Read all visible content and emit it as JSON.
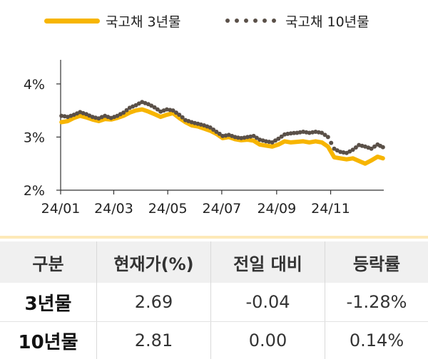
{
  "legend": {
    "series1": {
      "label": "국고채 3년물"
    },
    "series2": {
      "label": "국고채 10년물"
    }
  },
  "colors": {
    "series1": "#f7b500",
    "series2": "#5a5048",
    "axis": "#333333",
    "header_bg": "#f0f0f0"
  },
  "chart_data": {
    "type": "line",
    "x_ticks": [
      "24/01",
      "24/03",
      "24/05",
      "24/07",
      "24/09",
      "24/11"
    ],
    "y_ticks": [
      "2%",
      "3%",
      "4%"
    ],
    "ylim": [
      2.0,
      4.4
    ],
    "xlim": [
      "2024-01-01",
      "2024-12-31"
    ],
    "grid": false,
    "legend_position": "top",
    "series": [
      {
        "name": "국고채 3년물",
        "style": "solid",
        "x": [
          "2024-01-02",
          "2024-01-09",
          "2024-01-16",
          "2024-01-23",
          "2024-01-30",
          "2024-02-06",
          "2024-02-13",
          "2024-02-20",
          "2024-02-27",
          "2024-03-05",
          "2024-03-12",
          "2024-03-19",
          "2024-03-26",
          "2024-04-02",
          "2024-04-09",
          "2024-04-16",
          "2024-04-23",
          "2024-04-30",
          "2024-05-07",
          "2024-05-14",
          "2024-05-21",
          "2024-05-28",
          "2024-06-04",
          "2024-06-11",
          "2024-06-18",
          "2024-06-25",
          "2024-07-02",
          "2024-07-09",
          "2024-07-16",
          "2024-07-23",
          "2024-07-30",
          "2024-08-06",
          "2024-08-13",
          "2024-08-20",
          "2024-08-27",
          "2024-09-03",
          "2024-09-10",
          "2024-09-17",
          "2024-09-24",
          "2024-10-01",
          "2024-10-08",
          "2024-10-15",
          "2024-10-22",
          "2024-10-29",
          "2024-11-05",
          "2024-11-12",
          "2024-11-19",
          "2024-11-26",
          "2024-12-03",
          "2024-12-10",
          "2024-12-17",
          "2024-12-24",
          "2024-12-30"
        ],
        "y": [
          3.28,
          3.3,
          3.36,
          3.4,
          3.37,
          3.33,
          3.3,
          3.34,
          3.33,
          3.36,
          3.4,
          3.46,
          3.5,
          3.52,
          3.48,
          3.43,
          3.38,
          3.42,
          3.45,
          3.36,
          3.28,
          3.22,
          3.2,
          3.16,
          3.12,
          3.06,
          2.98,
          3.0,
          2.96,
          2.94,
          2.95,
          2.93,
          2.86,
          2.84,
          2.82,
          2.86,
          2.92,
          2.9,
          2.91,
          2.92,
          2.9,
          2.92,
          2.9,
          2.82,
          2.62,
          2.6,
          2.58,
          2.6,
          2.55,
          2.5,
          2.56,
          2.63,
          2.6
        ]
      },
      {
        "name": "국고채 10년물",
        "style": "dotted",
        "x": [
          "2024-01-02",
          "2024-01-09",
          "2024-01-16",
          "2024-01-23",
          "2024-01-30",
          "2024-02-06",
          "2024-02-13",
          "2024-02-20",
          "2024-02-27",
          "2024-03-05",
          "2024-03-12",
          "2024-03-19",
          "2024-03-26",
          "2024-04-02",
          "2024-04-09",
          "2024-04-16",
          "2024-04-23",
          "2024-04-30",
          "2024-05-07",
          "2024-05-14",
          "2024-05-21",
          "2024-05-28",
          "2024-06-04",
          "2024-06-11",
          "2024-06-18",
          "2024-06-25",
          "2024-07-02",
          "2024-07-09",
          "2024-07-16",
          "2024-07-23",
          "2024-07-30",
          "2024-08-06",
          "2024-08-13",
          "2024-08-20",
          "2024-08-27",
          "2024-09-03",
          "2024-09-10",
          "2024-09-17",
          "2024-09-24",
          "2024-10-01",
          "2024-10-08",
          "2024-10-15",
          "2024-10-22",
          "2024-10-29",
          "2024-11-05",
          "2024-11-12",
          "2024-11-19",
          "2024-11-26",
          "2024-12-03",
          "2024-12-10",
          "2024-12-17",
          "2024-12-24",
          "2024-12-30"
        ],
        "y": [
          3.4,
          3.38,
          3.42,
          3.47,
          3.43,
          3.38,
          3.35,
          3.4,
          3.36,
          3.4,
          3.46,
          3.55,
          3.6,
          3.66,
          3.62,
          3.56,
          3.48,
          3.52,
          3.5,
          3.42,
          3.32,
          3.28,
          3.25,
          3.22,
          3.18,
          3.1,
          3.02,
          3.04,
          3.0,
          2.98,
          3.0,
          3.02,
          2.95,
          2.92,
          2.9,
          2.97,
          3.05,
          3.07,
          3.08,
          3.1,
          3.08,
          3.1,
          3.08,
          3.0,
          2.78,
          2.72,
          2.7,
          2.76,
          2.85,
          2.82,
          2.78,
          2.86,
          2.81
        ]
      }
    ]
  },
  "table": {
    "headers": [
      "구분",
      "현재가(%)",
      "전일 대비",
      "등락률"
    ],
    "rows": [
      [
        "3년물",
        "2.69",
        "-0.04",
        "-1.28%"
      ],
      [
        "10년물",
        "2.81",
        "0.00",
        "0.14%"
      ]
    ]
  }
}
